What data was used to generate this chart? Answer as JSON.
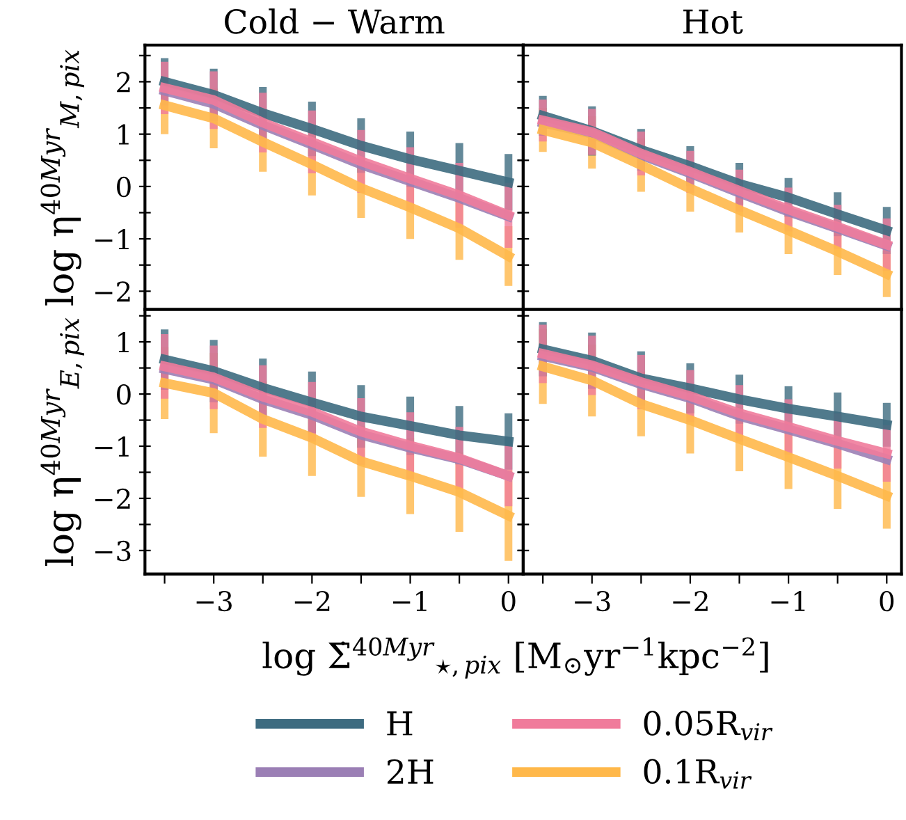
{
  "chart_data": [
    {
      "type": "line",
      "title": "Cold − Warm",
      "ylabel": "log η$^{40Myr}$$_{M,pix}$",
      "x": [
        -3.5,
        -3,
        -2.5,
        -2,
        -1.5,
        -1,
        -0.5,
        0
      ],
      "xlim": [
        -3.7,
        0.15
      ],
      "ylim": [
        -2.35,
        2.7
      ],
      "xticks": [
        {
          "value": -3.5,
          "label": null
        },
        -3,
        {
          "value": -2.5,
          "label": null
        },
        -2,
        {
          "value": -1.5,
          "label": null
        },
        -1,
        {
          "value": -0.5,
          "label": null
        },
        0
      ],
      "yticks": [
        -2,
        {
          "value": -1.5,
          "label": null
        },
        -1,
        {
          "value": -0.5,
          "label": null
        },
        0,
        {
          "value": 0.5,
          "label": null
        },
        1,
        {
          "value": 1.5,
          "label": null
        },
        2,
        {
          "value": 2.5,
          "label": null
        }
      ],
      "tick_labels": "y",
      "legend": "bottom",
      "grid": false,
      "series": [
        {
          "name": "H",
          "color": "#3d6b80",
          "values": [
            2.0,
            1.75,
            1.4,
            1.1,
            0.78,
            0.52,
            0.3,
            0.08
          ],
          "errors": [
            0.45,
            0.5,
            0.5,
            0.52,
            0.52,
            0.53,
            0.53,
            0.54
          ]
        },
        {
          "name": "2H",
          "color": "#9b7fb5",
          "values": [
            1.83,
            1.58,
            1.17,
            0.8,
            0.42,
            0.1,
            -0.22,
            -0.57
          ]
        },
        {
          "name": "0.05R$_{vir}$",
          "color": "#f07b9b",
          "values": [
            1.88,
            1.65,
            1.22,
            0.85,
            0.48,
            0.15,
            -0.17,
            -0.55
          ],
          "errors": [
            0.5,
            0.55,
            0.57,
            0.6,
            0.6,
            0.6,
            0.62,
            0.62
          ]
        },
        {
          "name": "0.1R$_{vir}$",
          "color": "#ffb84a",
          "values": [
            1.55,
            1.3,
            0.85,
            0.42,
            -0.03,
            -0.4,
            -0.8,
            -1.33
          ],
          "errors": [
            0.55,
            0.57,
            0.57,
            0.59,
            0.57,
            0.6,
            0.6,
            0.57
          ]
        }
      ]
    },
    {
      "type": "line",
      "title": "Hot",
      "x": [
        -3.5,
        -3,
        -2.5,
        -2,
        -1.5,
        -1,
        -0.5,
        0
      ],
      "xlim": [
        -3.7,
        0.15
      ],
      "ylim": [
        -2.35,
        2.7
      ],
      "xticks": [
        {
          "value": -3.5,
          "label": null
        },
        -3,
        {
          "value": -2.5,
          "label": null
        },
        -2,
        {
          "value": -1.5,
          "label": null
        },
        -1,
        {
          "value": -0.5,
          "label": null
        },
        0
      ],
      "yticks": [
        -2,
        {
          "value": -1.5,
          "label": null
        },
        -1,
        {
          "value": -0.5,
          "label": null
        },
        0,
        {
          "value": 0.5,
          "label": null
        },
        1,
        {
          "value": 1.5,
          "label": null
        },
        2,
        {
          "value": 2.5,
          "label": null
        }
      ],
      "tick_labels": false,
      "grid": false,
      "series": [
        {
          "color": "#3d6b80",
          "values": [
            1.35,
            1.06,
            0.7,
            0.39,
            0.05,
            -0.21,
            -0.53,
            -0.84
          ],
          "errors": [
            0.38,
            0.47,
            0.4,
            0.38,
            0.4,
            0.37,
            0.42,
            0.45
          ]
        },
        {
          "color": "#9b7fb5",
          "values": [
            1.22,
            1.01,
            0.6,
            0.25,
            -0.12,
            -0.48,
            -0.8,
            -1.13
          ]
        },
        {
          "color": "#f07b9b",
          "values": [
            1.26,
            1.04,
            0.63,
            0.28,
            -0.08,
            -0.44,
            -0.77,
            -1.11
          ],
          "errors": [
            0.4,
            0.44,
            0.42,
            0.4,
            0.4,
            0.42,
            0.42,
            0.5
          ]
        },
        {
          "color": "#ffb84a",
          "values": [
            1.08,
            0.84,
            0.41,
            -0.04,
            -0.45,
            -0.84,
            -1.24,
            -1.67
          ],
          "errors": [
            0.42,
            0.5,
            0.51,
            0.44,
            0.43,
            0.45,
            0.45,
            0.44
          ]
        }
      ]
    },
    {
      "type": "line",
      "ylabel": "log η$^{40Myr}$$_{E,pix}$",
      "x": [
        -3.5,
        -3,
        -2.5,
        -2,
        -1.5,
        -1,
        -0.5,
        0
      ],
      "xlim": [
        -3.7,
        0.15
      ],
      "ylim": [
        -3.45,
        1.62
      ],
      "xticks": [
        {
          "value": -3.5,
          "label": null
        },
        -3,
        {
          "value": -2.5,
          "label": null
        },
        -2,
        {
          "value": -1.5,
          "label": null
        },
        -1,
        {
          "value": -0.5,
          "label": null
        },
        0
      ],
      "yticks": [
        -3,
        {
          "value": -2.5,
          "label": null
        },
        -2,
        {
          "value": -1.5,
          "label": null
        },
        -1,
        {
          "value": -0.5,
          "label": null
        },
        0,
        {
          "value": 0.5,
          "label": null
        },
        1,
        {
          "value": 1.5,
          "label": null
        }
      ],
      "grid": false,
      "series": [
        {
          "color": "#3d6b80",
          "values": [
            0.66,
            0.44,
            0.12,
            -0.16,
            -0.43,
            -0.61,
            -0.79,
            -0.91
          ],
          "errors": [
            0.58,
            0.6,
            0.56,
            0.59,
            0.6,
            0.56,
            0.56,
            0.54
          ]
        },
        {
          "color": "#9b7fb5",
          "values": [
            0.48,
            0.28,
            -0.1,
            -0.4,
            -0.78,
            -1.03,
            -1.25,
            -1.57
          ]
        },
        {
          "color": "#f07b9b",
          "values": [
            0.53,
            0.32,
            -0.05,
            -0.34,
            -0.72,
            -0.99,
            -1.23,
            -1.57
          ],
          "errors": [
            0.62,
            0.61,
            0.6,
            0.57,
            0.64,
            0.64,
            0.6,
            0.58
          ]
        },
        {
          "color": "#ffb84a",
          "values": [
            0.21,
            0.02,
            -0.48,
            -0.84,
            -1.29,
            -1.57,
            -1.88,
            -2.33
          ],
          "errors": [
            0.69,
            0.77,
            0.72,
            0.73,
            0.68,
            0.73,
            0.76,
            0.87
          ]
        }
      ]
    },
    {
      "type": "line",
      "x": [
        -3.5,
        -3,
        -2.5,
        -2,
        -1.5,
        -1,
        -0.5,
        0
      ],
      "xlim": [
        -3.7,
        0.15
      ],
      "ylim": [
        -3.45,
        1.62
      ],
      "xticks": [
        {
          "value": -3.5,
          "label": null
        },
        -3,
        {
          "value": -2.5,
          "label": null
        },
        -2,
        {
          "value": -1.5,
          "label": null
        },
        -1,
        {
          "value": -0.5,
          "label": null
        },
        0
      ],
      "yticks": [
        -3,
        {
          "value": -2.5,
          "label": null
        },
        -2,
        {
          "value": -1.5,
          "label": null
        },
        -1,
        {
          "value": -0.5,
          "label": null
        },
        0,
        {
          "value": 0.5,
          "label": null
        },
        1,
        {
          "value": 1.5,
          "label": null
        }
      ],
      "tick_labels": "x",
      "xlabel": "log Σ̇$^{40Myr}$$_{⋆,pix}$ [M$_{⊙}$yr$^{−1}$kpc$^{−2}$]",
      "grid": false,
      "series": [
        {
          "color": "#3d6b80",
          "values": [
            0.86,
            0.64,
            0.3,
            0.11,
            -0.1,
            -0.28,
            -0.43,
            -0.59
          ],
          "errors": [
            0.52,
            0.54,
            0.52,
            0.48,
            0.47,
            0.43,
            0.46,
            0.42
          ]
        },
        {
          "color": "#9b7fb5",
          "values": [
            0.73,
            0.52,
            0.19,
            -0.08,
            -0.42,
            -0.68,
            -0.95,
            -1.25
          ]
        },
        {
          "color": "#f07b9b",
          "values": [
            0.77,
            0.55,
            0.23,
            -0.04,
            -0.37,
            -0.63,
            -0.9,
            -1.14
          ],
          "errors": [
            0.56,
            0.57,
            0.52,
            0.5,
            0.54,
            0.53,
            0.53,
            0.54
          ]
        },
        {
          "color": "#ffb84a",
          "values": [
            0.53,
            0.26,
            -0.19,
            -0.5,
            -0.86,
            -1.21,
            -1.57,
            -1.95
          ],
          "errors": [
            0.72,
            0.69,
            0.62,
            0.64,
            0.62,
            0.61,
            0.63,
            0.63
          ]
        }
      ]
    }
  ]
}
